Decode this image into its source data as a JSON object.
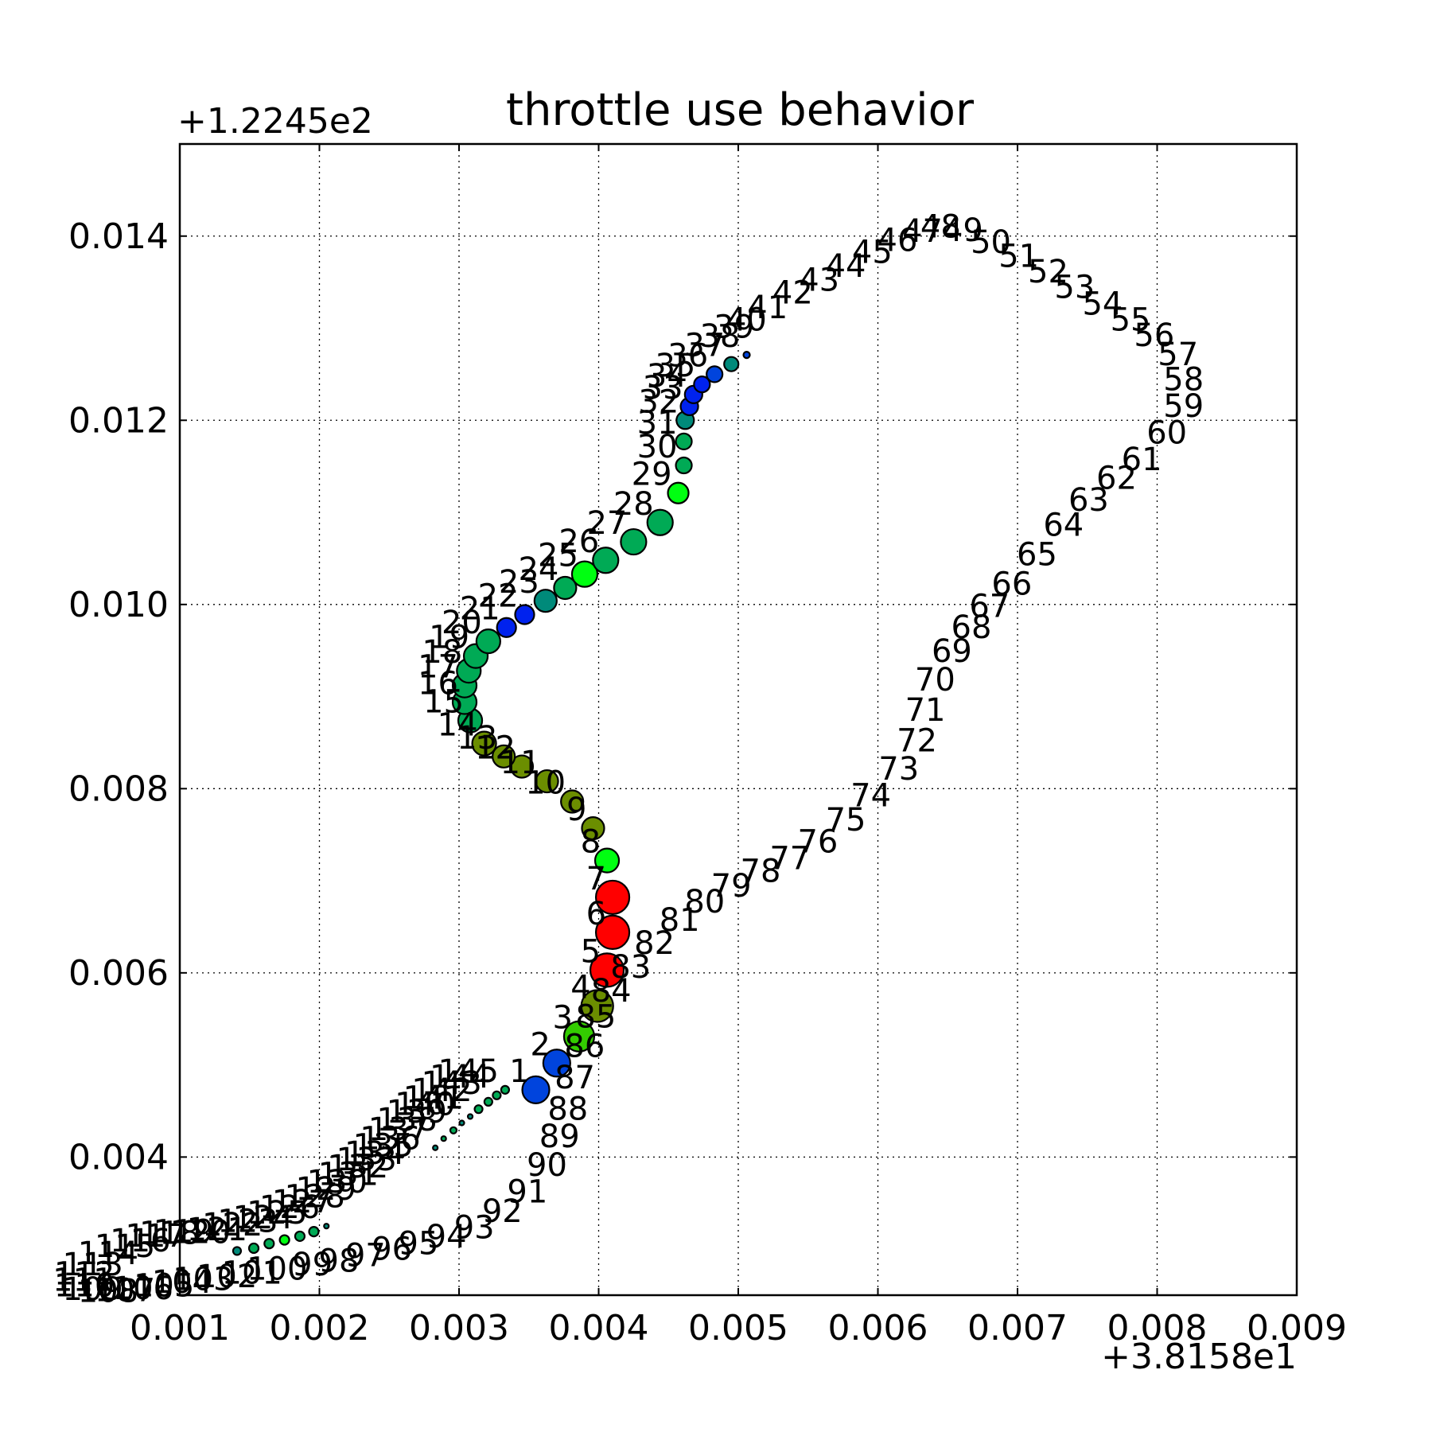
{
  "chart_data": {
    "type": "scatter",
    "title": "throttle use behavior",
    "xlabel": "",
    "ylabel": "",
    "x_offset_label": "+3.8158e1",
    "y_offset_label": "+1.2245e2",
    "xlim": [
      0.001,
      0.009
    ],
    "ylim": [
      0.0025,
      0.015
    ],
    "x_ticks": [
      0.001,
      0.002,
      0.003,
      0.004,
      0.005,
      0.006,
      0.007,
      0.008,
      0.009
    ],
    "x_tick_labels": [
      "0.001",
      "0.002",
      "0.003",
      "0.004",
      "0.005",
      "0.006",
      "0.007",
      "0.008",
      "0.009"
    ],
    "y_ticks": [
      0.004,
      0.006,
      0.008,
      0.01,
      0.012,
      0.014
    ],
    "y_tick_labels": [
      "0.004",
      "0.006",
      "0.008",
      "0.010",
      "0.012",
      "0.014"
    ],
    "grid": true,
    "grid_style": "dotted",
    "colors": {
      "red": "#ff0000",
      "olive": "#6b8e00",
      "green": "#00ff11",
      "teal_green": "#00aa55",
      "teal": "#008a7a",
      "blue": "#0044dd"
    },
    "points": [
      {
        "label": "1",
        "x": 0.00355,
        "y": 0.00473,
        "size": 17,
        "color": "#0044dd"
      },
      {
        "label": "2",
        "x": 0.0037,
        "y": 0.00502,
        "size": 17,
        "color": "#0044dd"
      },
      {
        "label": "3",
        "x": 0.00386,
        "y": 0.00531,
        "size": 19,
        "color": "#33cc00"
      },
      {
        "label": "4",
        "x": 0.00399,
        "y": 0.00564,
        "size": 20,
        "color": "#6b8e00"
      },
      {
        "label": "5",
        "x": 0.00406,
        "y": 0.00603,
        "size": 21,
        "color": "#ff0000"
      },
      {
        "label": "6",
        "x": 0.0041,
        "y": 0.00644,
        "size": 21,
        "color": "#ff0000"
      },
      {
        "label": "7",
        "x": 0.0041,
        "y": 0.00682,
        "size": 21,
        "color": "#ff0000"
      },
      {
        "label": "8",
        "x": 0.00406,
        "y": 0.00722,
        "size": 15,
        "color": "#00ff11"
      },
      {
        "label": "9",
        "x": 0.00396,
        "y": 0.00757,
        "size": 14,
        "color": "#6b8e00"
      },
      {
        "label": "10",
        "x": 0.00381,
        "y": 0.00786,
        "size": 14,
        "color": "#6b8e00"
      },
      {
        "label": "11",
        "x": 0.00363,
        "y": 0.00808,
        "size": 14,
        "color": "#6b8e00"
      },
      {
        "label": "12",
        "x": 0.00345,
        "y": 0.00824,
        "size": 14,
        "color": "#6b8e00"
      },
      {
        "label": "13",
        "x": 0.00332,
        "y": 0.00835,
        "size": 14,
        "color": "#6b8e00"
      },
      {
        "label": "14",
        "x": 0.00318,
        "y": 0.00849,
        "size": 15,
        "color": "#6b8e00"
      },
      {
        "label": "15",
        "x": 0.00308,
        "y": 0.00874,
        "size": 15,
        "color": "#00aa55"
      },
      {
        "label": "16",
        "x": 0.00304,
        "y": 0.00894,
        "size": 15,
        "color": "#00aa55"
      },
      {
        "label": "17",
        "x": 0.00304,
        "y": 0.00912,
        "size": 15,
        "color": "#00aa55"
      },
      {
        "label": "18",
        "x": 0.00307,
        "y": 0.00928,
        "size": 15,
        "color": "#00aa55"
      },
      {
        "label": "19",
        "x": 0.00312,
        "y": 0.00944,
        "size": 15,
        "color": "#00aa55"
      },
      {
        "label": "20",
        "x": 0.00321,
        "y": 0.0096,
        "size": 15,
        "color": "#00aa55"
      },
      {
        "label": "21",
        "x": 0.00334,
        "y": 0.00975,
        "size": 12,
        "color": "#0022ee"
      },
      {
        "label": "22",
        "x": 0.00347,
        "y": 0.00989,
        "size": 12,
        "color": "#0022ee"
      },
      {
        "label": "23",
        "x": 0.00362,
        "y": 0.01004,
        "size": 14,
        "color": "#008a7a"
      },
      {
        "label": "24",
        "x": 0.00376,
        "y": 0.01018,
        "size": 14,
        "color": "#00aa55"
      },
      {
        "label": "25",
        "x": 0.0039,
        "y": 0.01033,
        "size": 16,
        "color": "#00ff11"
      },
      {
        "label": "26",
        "x": 0.00405,
        "y": 0.01048,
        "size": 16,
        "color": "#00aa55"
      },
      {
        "label": "27",
        "x": 0.00425,
        "y": 0.01068,
        "size": 16,
        "color": "#00aa55"
      },
      {
        "label": "28",
        "x": 0.00444,
        "y": 0.01089,
        "size": 16,
        "color": "#00aa55"
      },
      {
        "label": "29",
        "x": 0.00457,
        "y": 0.01121,
        "size": 13,
        "color": "#00ff11"
      },
      {
        "label": "30",
        "x": 0.00461,
        "y": 0.01151,
        "size": 10,
        "color": "#00aa55"
      },
      {
        "label": "31",
        "x": 0.00461,
        "y": 0.01177,
        "size": 10,
        "color": "#00aa55"
      },
      {
        "label": "32",
        "x": 0.00462,
        "y": 0.012,
        "size": 11,
        "color": "#008a7a"
      },
      {
        "label": "33",
        "x": 0.00465,
        "y": 0.01215,
        "size": 11,
        "color": "#0022ee"
      },
      {
        "label": "34",
        "x": 0.00468,
        "y": 0.01228,
        "size": 11,
        "color": "#0022ee"
      },
      {
        "label": "35",
        "x": 0.00474,
        "y": 0.01239,
        "size": 10,
        "color": "#0022ee"
      },
      {
        "label": "36",
        "x": 0.00483,
        "y": 0.0125,
        "size": 10,
        "color": "#0044dd"
      },
      {
        "label": "37",
        "x": 0.00495,
        "y": 0.01261,
        "size": 9,
        "color": "#008a7a"
      },
      {
        "label": "38",
        "x": 0.00506,
        "y": 0.01271,
        "size": 4,
        "color": "#0044dd"
      },
      {
        "label": "39",
        "x": 0.00516,
        "y": 0.01281,
        "size": 0,
        "color": "#008a7a"
      },
      {
        "label": "40",
        "x": 0.00525,
        "y": 0.01289,
        "size": 0,
        "color": "#008a7a"
      },
      {
        "label": "41",
        "x": 0.0054,
        "y": 0.01302,
        "size": 0,
        "color": "#008a7a"
      },
      {
        "label": "42",
        "x": 0.00558,
        "y": 0.01318,
        "size": 0,
        "color": "#008a7a"
      },
      {
        "label": "43",
        "x": 0.00577,
        "y": 0.01332,
        "size": 0,
        "color": "#008a7a"
      },
      {
        "label": "44",
        "x": 0.00596,
        "y": 0.01347,
        "size": 0,
        "color": "#008a7a"
      },
      {
        "label": "45",
        "x": 0.00615,
        "y": 0.01362,
        "size": 0,
        "color": "#008a7a"
      },
      {
        "label": "46",
        "x": 0.00633,
        "y": 0.01375,
        "size": 0,
        "color": "#008a7a"
      },
      {
        "label": "47",
        "x": 0.00651,
        "y": 0.01385,
        "size": 0,
        "color": "#008a7a"
      },
      {
        "label": "48",
        "x": 0.00664,
        "y": 0.0139,
        "size": 0,
        "color": "#008a7a"
      },
      {
        "label": "49",
        "x": 0.0068,
        "y": 0.01386,
        "size": 0,
        "color": "#008a7a"
      },
      {
        "label": "50",
        "x": 0.007,
        "y": 0.01373,
        "size": 0,
        "color": "#008a7a"
      },
      {
        "label": "51",
        "x": 0.0072,
        "y": 0.01358,
        "size": 0,
        "color": "#008a7a"
      },
      {
        "label": "52",
        "x": 0.00741,
        "y": 0.01341,
        "size": 0,
        "color": "#008a7a"
      },
      {
        "label": "53",
        "x": 0.0076,
        "y": 0.01324,
        "size": 0,
        "color": "#008a7a"
      },
      {
        "label": "54",
        "x": 0.0078,
        "y": 0.01306,
        "size": 0,
        "color": "#008a7a"
      },
      {
        "label": "55",
        "x": 0.008,
        "y": 0.01289,
        "size": 0,
        "color": "#008a7a"
      },
      {
        "label": "56",
        "x": 0.00817,
        "y": 0.01272,
        "size": 0,
        "color": "#008a7a"
      },
      {
        "label": "57",
        "x": 0.00834,
        "y": 0.01251,
        "size": 0,
        "color": "#008a7a"
      },
      {
        "label": "58",
        "x": 0.00838,
        "y": 0.01224,
        "size": 0,
        "color": "#008a7a"
      },
      {
        "label": "59",
        "x": 0.00838,
        "y": 0.01195,
        "size": 0,
        "color": "#008a7a"
      },
      {
        "label": "60",
        "x": 0.00826,
        "y": 0.01166,
        "size": 0,
        "color": "#008a7a"
      },
      {
        "label": "61",
        "x": 0.00808,
        "y": 0.01137,
        "size": 0,
        "color": "#008a7a"
      },
      {
        "label": "62",
        "x": 0.0079,
        "y": 0.01117,
        "size": 0,
        "color": "#008a7a"
      },
      {
        "label": "63",
        "x": 0.0077,
        "y": 0.01093,
        "size": 0,
        "color": "#008a7a"
      },
      {
        "label": "64",
        "x": 0.00752,
        "y": 0.01066,
        "size": 0,
        "color": "#008a7a"
      },
      {
        "label": "65",
        "x": 0.00733,
        "y": 0.01034,
        "size": 0,
        "color": "#008a7a"
      },
      {
        "label": "66",
        "x": 0.00715,
        "y": 0.01002,
        "size": 0,
        "color": "#008a7a"
      },
      {
        "label": "67",
        "x": 0.00699,
        "y": 0.00978,
        "size": 0,
        "color": "#008a7a"
      },
      {
        "label": "68",
        "x": 0.00686,
        "y": 0.00955,
        "size": 0,
        "color": "#008a7a"
      },
      {
        "label": "69",
        "x": 0.00672,
        "y": 0.00929,
        "size": 0,
        "color": "#008a7a"
      },
      {
        "label": "70",
        "x": 0.0066,
        "y": 0.00898,
        "size": 0,
        "color": "#008a7a"
      },
      {
        "label": "71",
        "x": 0.00653,
        "y": 0.00865,
        "size": 0,
        "color": "#008a7a"
      },
      {
        "label": "72",
        "x": 0.00647,
        "y": 0.00832,
        "size": 0,
        "color": "#008a7a"
      },
      {
        "label": "73",
        "x": 0.00634,
        "y": 0.00801,
        "size": 0,
        "color": "#008a7a"
      },
      {
        "label": "74",
        "x": 0.00614,
        "y": 0.00772,
        "size": 0,
        "color": "#008a7a"
      },
      {
        "label": "75",
        "x": 0.00596,
        "y": 0.00746,
        "size": 0,
        "color": "#008a7a"
      },
      {
        "label": "76",
        "x": 0.00576,
        "y": 0.00722,
        "size": 0,
        "color": "#008a7a"
      },
      {
        "label": "77",
        "x": 0.00556,
        "y": 0.00704,
        "size": 0,
        "color": "#008a7a"
      },
      {
        "label": "78",
        "x": 0.00535,
        "y": 0.0069,
        "size": 0,
        "color": "#008a7a"
      },
      {
        "label": "79",
        "x": 0.00514,
        "y": 0.00674,
        "size": 0,
        "color": "#008a7a"
      },
      {
        "label": "80",
        "x": 0.00495,
        "y": 0.00657,
        "size": 0,
        "color": "#008a7a"
      },
      {
        "label": "81",
        "x": 0.00477,
        "y": 0.00637,
        "size": 0,
        "color": "#008a7a"
      },
      {
        "label": "82",
        "x": 0.00459,
        "y": 0.00612,
        "size": 0,
        "color": "#008a7a"
      },
      {
        "label": "83",
        "x": 0.00442,
        "y": 0.00586,
        "size": 0,
        "color": "#008a7a"
      },
      {
        "label": "84",
        "x": 0.00428,
        "y": 0.0056,
        "size": 0,
        "color": "#008a7a"
      },
      {
        "label": "85",
        "x": 0.00417,
        "y": 0.00532,
        "size": 0,
        "color": "#008a7a"
      },
      {
        "label": "86",
        "x": 0.00409,
        "y": 0.005,
        "size": 0,
        "color": "#008a7a"
      },
      {
        "label": "87",
        "x": 0.00402,
        "y": 0.00466,
        "size": 0,
        "color": "#008a7a"
      },
      {
        "label": "88",
        "x": 0.00397,
        "y": 0.00432,
        "size": 0,
        "color": "#008a7a"
      },
      {
        "label": "89",
        "x": 0.00391,
        "y": 0.00402,
        "size": 0,
        "color": "#008a7a"
      },
      {
        "label": "90",
        "x": 0.00382,
        "y": 0.00371,
        "size": 0,
        "color": "#008a7a"
      },
      {
        "label": "91",
        "x": 0.00368,
        "y": 0.00342,
        "size": 0,
        "color": "#008a7a"
      },
      {
        "label": "92",
        "x": 0.0035,
        "y": 0.00321,
        "size": 0,
        "color": "#008a7a"
      },
      {
        "label": "93",
        "x": 0.0033,
        "y": 0.00303,
        "size": 0,
        "color": "#008a7a"
      },
      {
        "label": "94",
        "x": 0.0031,
        "y": 0.00293,
        "size": 0,
        "color": "#008a7a"
      },
      {
        "label": "95",
        "x": 0.0029,
        "y": 0.00286,
        "size": 0,
        "color": "#008a7a"
      },
      {
        "label": "96",
        "x": 0.00271,
        "y": 0.0028,
        "size": 0,
        "color": "#008a7a"
      },
      {
        "label": "97",
        "x": 0.00252,
        "y": 0.00273,
        "size": 0,
        "color": "#008a7a"
      },
      {
        "label": "98",
        "x": 0.00233,
        "y": 0.00267,
        "size": 0,
        "color": "#008a7a"
      },
      {
        "label": "99",
        "x": 0.00214,
        "y": 0.00263,
        "size": 0,
        "color": "#008a7a"
      },
      {
        "label": "100",
        "x": 0.00196,
        "y": 0.00258,
        "size": 0,
        "color": "#008a7a"
      },
      {
        "label": "101",
        "x": 0.00178,
        "y": 0.00254,
        "size": 0,
        "color": "#008a7a"
      },
      {
        "label": "102",
        "x": 0.0016,
        "y": 0.0025,
        "size": 0,
        "color": "#008a7a"
      },
      {
        "label": "103",
        "x": 0.00143,
        "y": 0.00247,
        "size": 0,
        "color": "#008a7a"
      },
      {
        "label": "104",
        "x": 0.00128,
        "y": 0.00244,
        "size": 0,
        "color": "#008a7a"
      },
      {
        "label": "105",
        "x": 0.00115,
        "y": 0.0024,
        "size": 0,
        "color": "#008a7a"
      },
      {
        "label": "106",
        "x": 0.001,
        "y": 0.00237,
        "size": 0,
        "color": "#008a7a"
      },
      {
        "label": "107",
        "x": 0.00087,
        "y": 0.00235,
        "size": 0,
        "color": "#008a7a"
      },
      {
        "label": "108",
        "x": 0.00075,
        "y": 0.00234,
        "size": 0,
        "color": "#008a7a"
      },
      {
        "label": "109",
        "x": 0.00064,
        "y": 0.00236,
        "size": 0,
        "color": "#008a7a"
      },
      {
        "label": "110",
        "x": 0.00058,
        "y": 0.0024,
        "size": 0,
        "color": "#008a7a"
      },
      {
        "label": "111",
        "x": 0.00057,
        "y": 0.00246,
        "size": 0,
        "color": "#008a7a"
      },
      {
        "label": "112",
        "x": 0.00058,
        "y": 0.00253,
        "size": 0,
        "color": "#008a7a"
      },
      {
        "label": "113",
        "x": 0.00064,
        "y": 0.00263,
        "size": 0,
        "color": "#008a7a"
      },
      {
        "label": "114",
        "x": 0.00075,
        "y": 0.00275,
        "size": 0,
        "color": "#008a7a"
      },
      {
        "label": "115",
        "x": 0.00087,
        "y": 0.00283,
        "size": 0,
        "color": "#008a7a"
      },
      {
        "label": "116",
        "x": 0.00098,
        "y": 0.00289,
        "size": 0,
        "color": "#008a7a"
      },
      {
        "label": "117",
        "x": 0.00109,
        "y": 0.00294,
        "size": 0,
        "color": "#008a7a"
      },
      {
        "label": "118",
        "x": 0.00119,
        "y": 0.00297,
        "size": 0,
        "color": "#008a7a"
      },
      {
        "label": "119",
        "x": 0.00129,
        "y": 0.00299,
        "size": 0,
        "color": "#008a7a"
      },
      {
        "label": "120",
        "x": 0.00141,
        "y": 0.00298,
        "size": 5,
        "color": "#008a7a"
      },
      {
        "label": "121",
        "x": 0.00153,
        "y": 0.00301,
        "size": 6,
        "color": "#00aa55"
      },
      {
        "label": "122",
        "x": 0.00164,
        "y": 0.00306,
        "size": 6,
        "color": "#00aa55"
      },
      {
        "label": "123",
        "x": 0.00175,
        "y": 0.0031,
        "size": 6,
        "color": "#00ff11"
      },
      {
        "label": "124",
        "x": 0.00186,
        "y": 0.00314,
        "size": 6,
        "color": "#00aa55"
      },
      {
        "label": "125",
        "x": 0.00196,
        "y": 0.00319,
        "size": 6,
        "color": "#00aa55"
      },
      {
        "label": "126",
        "x": 0.00205,
        "y": 0.00325,
        "size": 3,
        "color": "#008a7a"
      },
      {
        "label": "127",
        "x": 0.00214,
        "y": 0.00331,
        "size": 0,
        "color": "#008a7a"
      },
      {
        "label": "128",
        "x": 0.00223,
        "y": 0.00337,
        "size": 0,
        "color": "#008a7a"
      },
      {
        "label": "129",
        "x": 0.00231,
        "y": 0.00345,
        "size": 0,
        "color": "#008a7a"
      },
      {
        "label": "130",
        "x": 0.00239,
        "y": 0.00353,
        "size": 0,
        "color": "#008a7a"
      },
      {
        "label": "131",
        "x": 0.00247,
        "y": 0.00361,
        "size": 0,
        "color": "#008a7a"
      },
      {
        "label": "132",
        "x": 0.00254,
        "y": 0.00369,
        "size": 0,
        "color": "#008a7a"
      },
      {
        "label": "133",
        "x": 0.0026,
        "y": 0.00377,
        "size": 0,
        "color": "#008a7a"
      },
      {
        "label": "134",
        "x": 0.00266,
        "y": 0.00384,
        "size": 0,
        "color": "#008a7a"
      },
      {
        "label": "135",
        "x": 0.00272,
        "y": 0.00392,
        "size": 0,
        "color": "#008a7a"
      },
      {
        "label": "136",
        "x": 0.00277,
        "y": 0.004,
        "size": 0,
        "color": "#008a7a"
      },
      {
        "label": "137",
        "x": 0.00283,
        "y": 0.0041,
        "size": 3,
        "color": "#008a7a"
      },
      {
        "label": "138",
        "x": 0.00289,
        "y": 0.0042,
        "size": 3,
        "color": "#00aa55"
      },
      {
        "label": "139",
        "x": 0.00296,
        "y": 0.00429,
        "size": 4,
        "color": "#00aa55"
      },
      {
        "label": "140",
        "x": 0.00302,
        "y": 0.00437,
        "size": 3,
        "color": "#008a7a"
      },
      {
        "label": "141",
        "x": 0.00308,
        "y": 0.00444,
        "size": 3,
        "color": "#008a7a"
      },
      {
        "label": "142",
        "x": 0.00314,
        "y": 0.00452,
        "size": 5,
        "color": "#00aa55"
      },
      {
        "label": "143",
        "x": 0.00321,
        "y": 0.0046,
        "size": 5,
        "color": "#00aa55"
      },
      {
        "label": "144",
        "x": 0.00327,
        "y": 0.00467,
        "size": 5,
        "color": "#00aa55"
      },
      {
        "label": "145",
        "x": 0.00333,
        "y": 0.00473,
        "size": 5,
        "color": "#00aa55"
      }
    ]
  }
}
